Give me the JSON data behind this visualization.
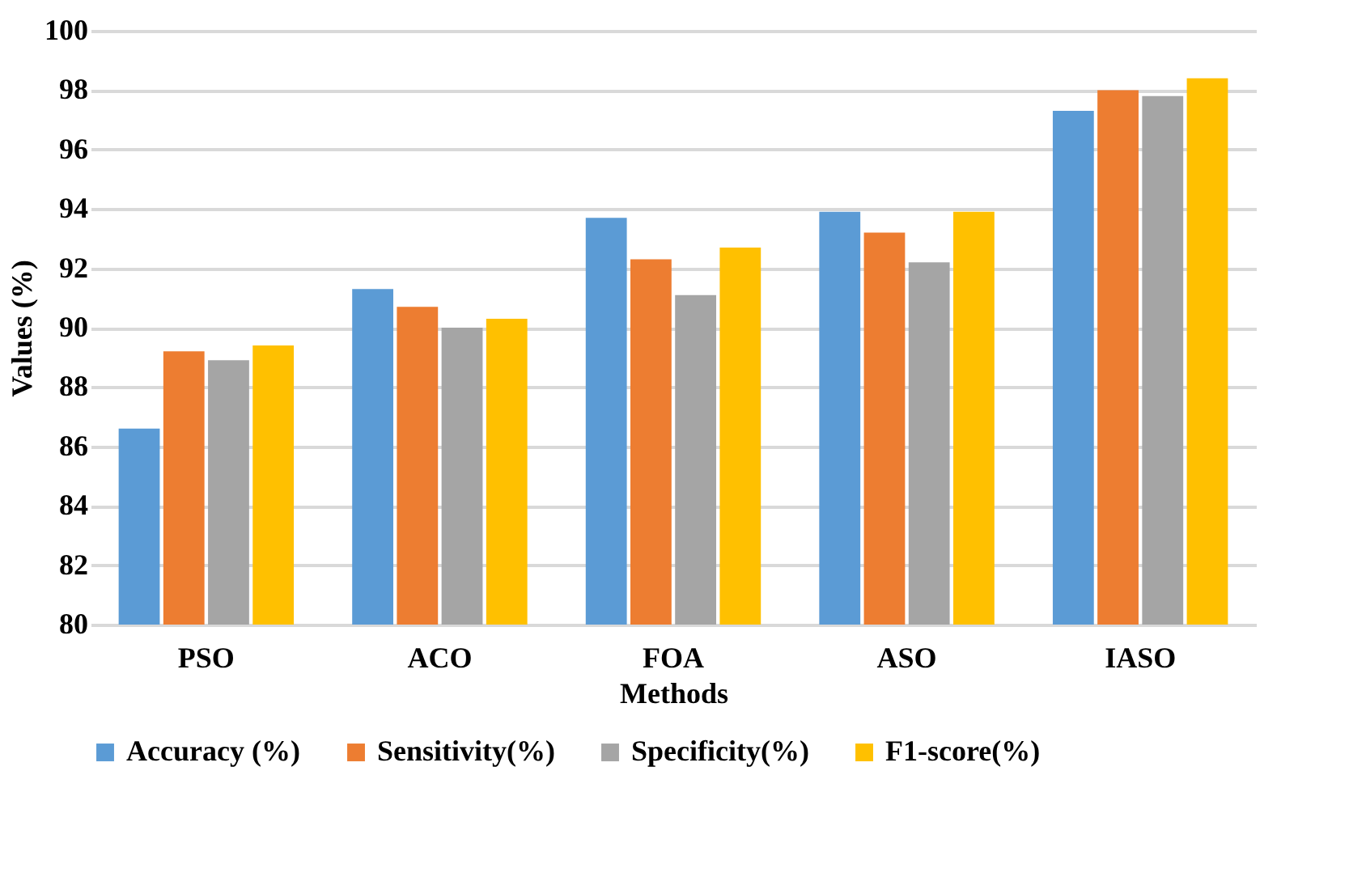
{
  "chart_data": {
    "type": "bar",
    "xlabel": "Methods",
    "ylabel": "Values (%)",
    "categories": [
      "PSO",
      "ACO",
      "FOA",
      "ASO",
      "IASO"
    ],
    "series": [
      {
        "name": "Accuracy (%)",
        "color": "#5b9bd5",
        "values": [
          86.6,
          91.3,
          93.7,
          93.9,
          97.3
        ]
      },
      {
        "name": "Sensitivity(%)",
        "color": "#ed7d31",
        "values": [
          89.2,
          90.7,
          92.3,
          93.2,
          98.0
        ]
      },
      {
        "name": "Specificity(%)",
        "color": "#a5a5a5",
        "values": [
          88.9,
          90.0,
          91.1,
          92.2,
          97.8
        ]
      },
      {
        "name": "F1-score(%)",
        "color": "#ffc000",
        "values": [
          89.4,
          90.3,
          92.7,
          93.9,
          98.4
        ]
      }
    ],
    "ylim": [
      80,
      100
    ],
    "yticks": [
      80,
      82,
      84,
      86,
      88,
      90,
      92,
      94,
      96,
      98,
      100
    ],
    "grid": "y",
    "legend": "bottom"
  }
}
